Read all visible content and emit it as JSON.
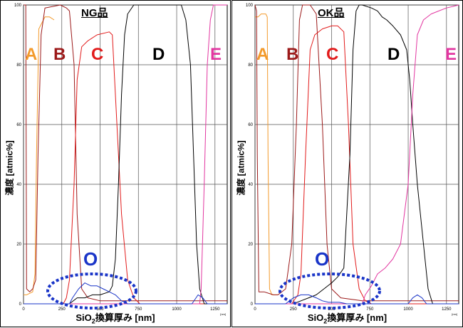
{
  "colors": {
    "A": "#f39a2b",
    "B": "#9c1a1a",
    "C": "#e21b1b",
    "D": "#000000",
    "E": "#e236a0",
    "O": "#1a35c8"
  },
  "common": {
    "ylabel": "濃度 [atmic%]",
    "xlabel_pre": "SiO",
    "xlabel_sub": "2",
    "xlabel_post": "換算厚み [nm]",
    "unit": "[nm]",
    "xticks": [
      "0",
      "250",
      "500",
      "750",
      "1000",
      "1250"
    ],
    "yticks": [
      "0",
      "20",
      "40",
      "60",
      "80",
      "100"
    ]
  },
  "panels": [
    {
      "title": "NG品",
      "regions": [
        "A",
        "B",
        "C",
        "D",
        "E"
      ],
      "oxygen_label": "O"
    },
    {
      "title": "OK品",
      "regions": [
        "A",
        "B",
        "C",
        "D",
        "E"
      ],
      "oxygen_label": "O"
    }
  ],
  "chart_data": [
    {
      "type": "line",
      "title": "NG品",
      "xlabel": "SiO2換算厚み [nm]",
      "ylabel": "濃度 [atmic%]",
      "xlim": [
        0,
        1330
      ],
      "ylim": [
        0,
        100
      ],
      "grid": true,
      "series": [
        {
          "name": "A",
          "color": "#f39a2b",
          "points": [
            [
              0,
              3
            ],
            [
              20,
              3
            ],
            [
              60,
              4
            ],
            [
              75,
              10
            ],
            [
              85,
              50
            ],
            [
              100,
              92
            ],
            [
              140,
              96
            ],
            [
              170,
              96
            ],
            [
              200,
              95
            ]
          ]
        },
        {
          "name": "B",
          "color": "#9c1a1a",
          "points": [
            [
              0,
              100
            ],
            [
              15,
              100
            ],
            [
              20,
              5
            ],
            [
              40,
              4
            ],
            [
              60,
              5
            ],
            [
              80,
              8
            ],
            [
              95,
              50
            ],
            [
              115,
              90
            ],
            [
              140,
              99
            ],
            [
              240,
              100
            ],
            [
              280,
              99
            ],
            [
              300,
              98
            ],
            [
              330,
              80
            ],
            [
              350,
              30
            ],
            [
              380,
              5
            ],
            [
              420,
              2
            ],
            [
              500,
              1
            ],
            [
              1330,
              1
            ]
          ]
        },
        {
          "name": "C",
          "color": "#e21b1b",
          "points": [
            [
              0,
              0
            ],
            [
              260,
              0
            ],
            [
              280,
              2
            ],
            [
              300,
              8
            ],
            [
              330,
              40
            ],
            [
              350,
              75
            ],
            [
              380,
              86
            ],
            [
              420,
              88
            ],
            [
              480,
              90
            ],
            [
              560,
              91
            ],
            [
              580,
              90
            ],
            [
              600,
              70
            ],
            [
              640,
              30
            ],
            [
              680,
              8
            ],
            [
              720,
              2
            ],
            [
              760,
              0
            ],
            [
              1330,
              0
            ]
          ]
        },
        {
          "name": "D",
          "color": "#000000",
          "points": [
            [
              0,
              0
            ],
            [
              300,
              0
            ],
            [
              350,
              2
            ],
            [
              400,
              2
            ],
            [
              450,
              3
            ],
            [
              500,
              3
            ],
            [
              560,
              4
            ],
            [
              580,
              6
            ],
            [
              600,
              15
            ],
            [
              620,
              40
            ],
            [
              640,
              70
            ],
            [
              660,
              90
            ],
            [
              680,
              97
            ],
            [
              720,
              100
            ],
            [
              1030,
              100
            ],
            [
              1060,
              95
            ],
            [
              1090,
              80
            ],
            [
              1110,
              50
            ],
            [
              1130,
              20
            ],
            [
              1150,
              5
            ],
            [
              1180,
              0
            ],
            [
              1330,
              0
            ]
          ]
        },
        {
          "name": "E",
          "color": "#e236a0",
          "points": [
            [
              0,
              0
            ],
            [
              1150,
              0
            ],
            [
              1160,
              5
            ],
            [
              1180,
              40
            ],
            [
              1200,
              80
            ],
            [
              1220,
              95
            ],
            [
              1240,
              100
            ],
            [
              1330,
              100
            ]
          ]
        },
        {
          "name": "O",
          "color": "#1a35c8",
          "points": [
            [
              0,
              0
            ],
            [
              300,
              0
            ],
            [
              320,
              2
            ],
            [
              360,
              5
            ],
            [
              400,
              7
            ],
            [
              440,
              6
            ],
            [
              480,
              6
            ],
            [
              520,
              5
            ],
            [
              560,
              4
            ],
            [
              600,
              3
            ],
            [
              640,
              1
            ],
            [
              680,
              0
            ],
            [
              1100,
              0
            ],
            [
              1140,
              3
            ],
            [
              1170,
              2
            ],
            [
              1200,
              0
            ],
            [
              1330,
              0
            ]
          ]
        }
      ]
    },
    {
      "type": "line",
      "title": "OK品",
      "xlabel": "SiO2換算厚み [nm]",
      "ylabel": "濃度 [atmic%]",
      "xlim": [
        0,
        1330
      ],
      "ylim": [
        0,
        100
      ],
      "grid": true,
      "series": [
        {
          "name": "A",
          "color": "#f39a2b",
          "points": [
            [
              0,
              96
            ],
            [
              20,
              96
            ],
            [
              40,
              97
            ],
            [
              70,
              97
            ],
            [
              80,
              96
            ],
            [
              85,
              50
            ],
            [
              95,
              5
            ],
            [
              110,
              3
            ],
            [
              150,
              3
            ]
          ]
        },
        {
          "name": "B",
          "color": "#9c1a1a",
          "points": [
            [
              0,
              100
            ],
            [
              10,
              98
            ],
            [
              15,
              50
            ],
            [
              25,
              4
            ],
            [
              60,
              4
            ],
            [
              120,
              3
            ],
            [
              150,
              3
            ],
            [
              200,
              5
            ],
            [
              240,
              20
            ],
            [
              270,
              60
            ],
            [
              290,
              95
            ],
            [
              310,
              100
            ],
            [
              360,
              100
            ],
            [
              400,
              97
            ],
            [
              440,
              60
            ],
            [
              470,
              20
            ],
            [
              500,
              5
            ],
            [
              560,
              2
            ],
            [
              700,
              1
            ],
            [
              1330,
              1
            ]
          ]
        },
        {
          "name": "C",
          "color": "#e21b1b",
          "points": [
            [
              0,
              0
            ],
            [
              240,
              0
            ],
            [
              280,
              3
            ],
            [
              300,
              10
            ],
            [
              330,
              50
            ],
            [
              360,
              85
            ],
            [
              390,
              90
            ],
            [
              440,
              92
            ],
            [
              500,
              93
            ],
            [
              540,
              93
            ],
            [
              580,
              91
            ],
            [
              610,
              60
            ],
            [
              640,
              20
            ],
            [
              680,
              5
            ],
            [
              720,
              1
            ],
            [
              760,
              0
            ],
            [
              1330,
              0
            ]
          ]
        },
        {
          "name": "D",
          "color": "#000000",
          "points": [
            [
              0,
              0
            ],
            [
              250,
              0
            ],
            [
              300,
              1
            ],
            [
              350,
              2
            ],
            [
              400,
              3
            ],
            [
              450,
              5
            ],
            [
              500,
              7
            ],
            [
              540,
              9
            ],
            [
              580,
              12
            ],
            [
              620,
              50
            ],
            [
              640,
              85
            ],
            [
              660,
              98
            ],
            [
              680,
              100
            ],
            [
              700,
              100
            ],
            [
              760,
              99
            ],
            [
              800,
              98
            ],
            [
              830,
              96
            ],
            [
              860,
              95
            ],
            [
              900,
              93
            ],
            [
              950,
              90
            ],
            [
              990,
              85
            ],
            [
              1010,
              75
            ],
            [
              1030,
              60
            ],
            [
              1060,
              40
            ],
            [
              1100,
              20
            ],
            [
              1130,
              5
            ],
            [
              1160,
              0
            ],
            [
              1330,
              0
            ]
          ]
        },
        {
          "name": "E",
          "color": "#e236a0",
          "points": [
            [
              0,
              0
            ],
            [
              700,
              0
            ],
            [
              720,
              3
            ],
            [
              760,
              6
            ],
            [
              800,
              10
            ],
            [
              850,
              12
            ],
            [
              900,
              15
            ],
            [
              950,
              20
            ],
            [
              1000,
              40
            ],
            [
              1030,
              70
            ],
            [
              1060,
              90
            ],
            [
              1100,
              95
            ],
            [
              1150,
              97
            ],
            [
              1200,
              98
            ],
            [
              1250,
              99
            ],
            [
              1330,
              100
            ]
          ]
        },
        {
          "name": "O",
          "color": "#1a35c8",
          "points": [
            [
              0,
              0
            ],
            [
              200,
              0
            ],
            [
              250,
              2
            ],
            [
              300,
              3
            ],
            [
              350,
              3
            ],
            [
              400,
              2
            ],
            [
              440,
              1
            ],
            [
              480,
              0.5
            ],
            [
              550,
              0.5
            ],
            [
              600,
              0
            ],
            [
              1000,
              0
            ],
            [
              1030,
              2
            ],
            [
              1060,
              3
            ],
            [
              1090,
              2
            ],
            [
              1120,
              0
            ],
            [
              1330,
              0
            ]
          ]
        }
      ]
    }
  ]
}
